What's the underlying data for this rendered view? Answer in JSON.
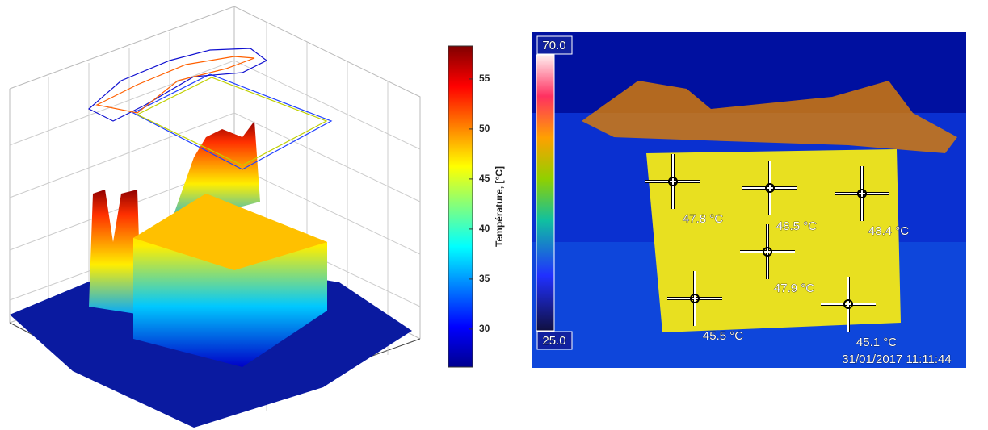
{
  "colorbar": {
    "label": "Température, [°C]",
    "lim": [
      26.2,
      58.3
    ],
    "ticks": [
      30,
      35,
      40,
      45,
      50,
      55
    ]
  },
  "thermal": {
    "scale_max": "70.0",
    "scale_min": "25.0",
    "spots": [
      {
        "label": "47.8 °C"
      },
      {
        "label": "48.5 °C"
      },
      {
        "label": "48.4 °C"
      },
      {
        "label": "47.9 °C"
      },
      {
        "label": "45.5 °C"
      },
      {
        "label": "45.1 °C"
      }
    ],
    "timestamp": "31/01/2017 11:11:44"
  }
}
